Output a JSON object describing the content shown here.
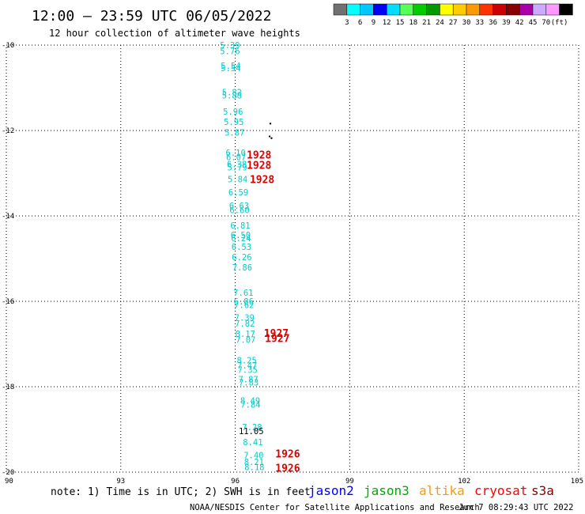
{
  "header": {
    "title": "12:00 — 23:59 UTC 06/05/2022",
    "subtitle": "12 hour collection of altimeter wave heights"
  },
  "scale": {
    "colors": [
      "#707070",
      "#00ffff",
      "#00c8ff",
      "#0000ff",
      "#00ddff",
      "#55ff55",
      "#00cc00",
      "#009900",
      "#ffff00",
      "#ffcc00",
      "#ff9900",
      "#ff3300",
      "#cc0000",
      "#880000",
      "#aa00aa",
      "#ccaaff",
      "#ff99ff",
      "#000000"
    ],
    "ticks": [
      "3",
      "6",
      "9",
      "12",
      "15",
      "18",
      "21",
      "24",
      "27",
      "30",
      "33",
      "36",
      "39",
      "42",
      "45",
      "70",
      "(ft)"
    ]
  },
  "footer": {
    "note": "note: 1) Time is in UTC; 2) SWH is in feet",
    "credit": "NOAA/NESDIS Center for Satellite Applications and Research",
    "timestamp": "Jun  7 08:29:43 UTC 2022",
    "legend": [
      {
        "name": "jason2",
        "color": "#0000ff"
      },
      {
        "name": "jason3",
        "color": "#00aa00"
      },
      {
        "name": "altika",
        "color": "#ff9900"
      },
      {
        "name": "cryosat",
        "color": "#ff0000"
      },
      {
        "name": "s3a",
        "color": "#880000"
      }
    ]
  },
  "chart_data": {
    "type": "scatter",
    "xlim": [
      90,
      105
    ],
    "ylim": [
      -20,
      -10
    ],
    "x_ticks": [
      "90",
      "93",
      "96",
      "99",
      "102",
      "105"
    ],
    "y_ticks": [
      "-10",
      "-12",
      "-14",
      "-16",
      "-18",
      "-20"
    ],
    "grid": true,
    "series": [
      {
        "name": "jason3",
        "color": "#00cccc",
        "points": [
          {
            "lon": 95.6,
            "lat": -10.0,
            "label": "5.39"
          },
          {
            "lon": 95.6,
            "lat": -10.14,
            "label": "5.76"
          },
          {
            "lon": 95.62,
            "lat": -10.48,
            "label": "5.54"
          },
          {
            "lon": 95.62,
            "lat": -10.54,
            "label": "5.54"
          },
          {
            "lon": 95.65,
            "lat": -11.1,
            "label": "5.82"
          },
          {
            "lon": 95.65,
            "lat": -11.18,
            "label": "5.88"
          },
          {
            "lon": 95.68,
            "lat": -11.56,
            "label": "5.96"
          },
          {
            "lon": 95.7,
            "lat": -11.8,
            "label": "5.95"
          },
          {
            "lon": 95.72,
            "lat": -12.05,
            "label": "5.87"
          },
          {
            "lon": 95.75,
            "lat": -12.52,
            "label": "6.10"
          },
          {
            "lon": 95.76,
            "lat": -12.62,
            "label": "6.07"
          },
          {
            "lon": 95.78,
            "lat": -12.79,
            "label": "6.38"
          },
          {
            "lon": 95.79,
            "lat": -12.86,
            "label": "5.79"
          },
          {
            "lon": 95.8,
            "lat": -13.14,
            "label": "5.84"
          },
          {
            "lon": 95.82,
            "lat": -13.44,
            "label": "6.59"
          },
          {
            "lon": 95.84,
            "lat": -13.76,
            "label": "6.63"
          },
          {
            "lon": 95.85,
            "lat": -13.86,
            "label": "6.60"
          },
          {
            "lon": 95.87,
            "lat": -14.22,
            "label": "6.81"
          },
          {
            "lon": 95.88,
            "lat": -14.44,
            "label": "6.50"
          },
          {
            "lon": 95.89,
            "lat": -14.52,
            "label": "6.24"
          },
          {
            "lon": 95.9,
            "lat": -14.72,
            "label": "6.53"
          },
          {
            "lon": 95.91,
            "lat": -14.96,
            "label": "6.26"
          },
          {
            "lon": 95.92,
            "lat": -15.2,
            "label": "7.86"
          },
          {
            "lon": 95.95,
            "lat": -15.8,
            "label": "7.61"
          },
          {
            "lon": 95.96,
            "lat": -16.0,
            "label": "6.86"
          },
          {
            "lon": 95.97,
            "lat": -16.08,
            "label": "7.62"
          },
          {
            "lon": 95.98,
            "lat": -16.38,
            "label": "7.39"
          },
          {
            "lon": 95.99,
            "lat": -16.52,
            "label": "7.82"
          },
          {
            "lon": 96.0,
            "lat": -16.76,
            "label": "8.17"
          },
          {
            "lon": 96.01,
            "lat": -16.9,
            "label": "7.07"
          },
          {
            "lon": 96.04,
            "lat": -17.38,
            "label": "8.25"
          },
          {
            "lon": 96.05,
            "lat": -17.5,
            "label": "7.47"
          },
          {
            "lon": 96.06,
            "lat": -17.6,
            "label": "7.35"
          },
          {
            "lon": 96.08,
            "lat": -17.82,
            "label": "7.87"
          },
          {
            "lon": 96.09,
            "lat": -17.9,
            "label": "7.83"
          },
          {
            "lon": 96.13,
            "lat": -18.32,
            "label": "8.49"
          },
          {
            "lon": 96.14,
            "lat": -18.42,
            "label": "7.84"
          },
          {
            "lon": 96.18,
            "lat": -18.94,
            "label": "7.28"
          },
          {
            "lon": 96.2,
            "lat": -19.3,
            "label": "8.41"
          },
          {
            "lon": 96.22,
            "lat": -19.6,
            "label": "7.40"
          },
          {
            "lon": 96.23,
            "lat": -19.76,
            "label": "8.21"
          },
          {
            "lon": 96.24,
            "lat": -19.88,
            "label": "8.18"
          }
        ]
      },
      {
        "name": "jason3-high",
        "color": "#000000",
        "points": [
          {
            "lon": 96.09,
            "lat": -19.04,
            "label": "11.05"
          }
        ]
      },
      {
        "name": "cryosat",
        "color": "#dd0000",
        "points": [
          {
            "lon": 96.3,
            "lat": -12.58,
            "label": "1928"
          },
          {
            "lon": 96.3,
            "lat": -12.82,
            "label": "1928"
          },
          {
            "lon": 96.38,
            "lat": -13.16,
            "label": "1928"
          },
          {
            "lon": 96.75,
            "lat": -16.76,
            "label": "1927"
          },
          {
            "lon": 96.78,
            "lat": -16.88,
            "label": "1927"
          },
          {
            "lon": 97.05,
            "lat": -19.58,
            "label": "1926"
          },
          {
            "lon": 97.05,
            "lat": -19.92,
            "label": "1926"
          }
        ]
      }
    ],
    "markers": [
      {
        "lon": 96.92,
        "lat": -11.84
      },
      {
        "lon": 96.9,
        "lat": -12.14
      },
      {
        "lon": 96.95,
        "lat": -12.18
      }
    ]
  }
}
